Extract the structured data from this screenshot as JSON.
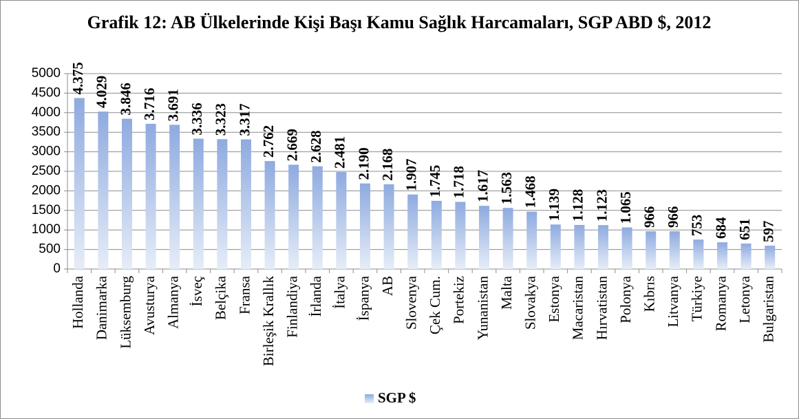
{
  "chart_data": {
    "type": "bar",
    "title": "Grafik 12: AB Ülkelerinde Kişi Başı Kamu Sağlık Harcamaları, SGP ABD $, 2012",
    "categories": [
      "Hollanda",
      "Danimarka",
      "Lüksemburg",
      "Avusturya",
      "Almanya",
      "İsveç",
      "Belçika",
      "Fransa",
      "Birleşik Krallık",
      "Finlandiya",
      "İrlanda",
      "İtalya",
      "İspanya",
      "AB",
      "Slovenya",
      "Çek Cum.",
      "Portekiz",
      "Yunanistan",
      "Malta",
      "Slovakya",
      "Estonya",
      "Macaristan",
      "Hırvatistan",
      "Polonya",
      "Kıbrıs",
      "Litvanya",
      "Türkiye",
      "Romanya",
      "Letonya",
      "Bulgaristan"
    ],
    "series": [
      {
        "name": "SGP $",
        "color": "#8eaadf",
        "values": [
          4375,
          4029,
          3846,
          3716,
          3691,
          3336,
          3323,
          3317,
          2762,
          2669,
          2628,
          2481,
          2190,
          2168,
          1907,
          1745,
          1718,
          1617,
          1563,
          1468,
          1139,
          1128,
          1123,
          1065,
          966,
          966,
          753,
          684,
          651,
          597
        ],
        "value_labels": [
          "4.375",
          "4.029",
          "3.846",
          "3.716",
          "3.691",
          "3.336",
          "3.323",
          "3.317",
          "2.762",
          "2.669",
          "2.628",
          "2.481",
          "2.190",
          "2.168",
          "1.907",
          "1.745",
          "1.718",
          "1.617",
          "1.563",
          "1.468",
          "1.139",
          "1.128",
          "1.123",
          "1.065",
          "966",
          "966",
          "753",
          "684",
          "651",
          "597"
        ]
      }
    ],
    "ylim": [
      0,
      5000
    ],
    "yticks": [
      0,
      500,
      1000,
      1500,
      2000,
      2500,
      3000,
      3500,
      4000,
      4500,
      5000
    ],
    "grid": true
  }
}
